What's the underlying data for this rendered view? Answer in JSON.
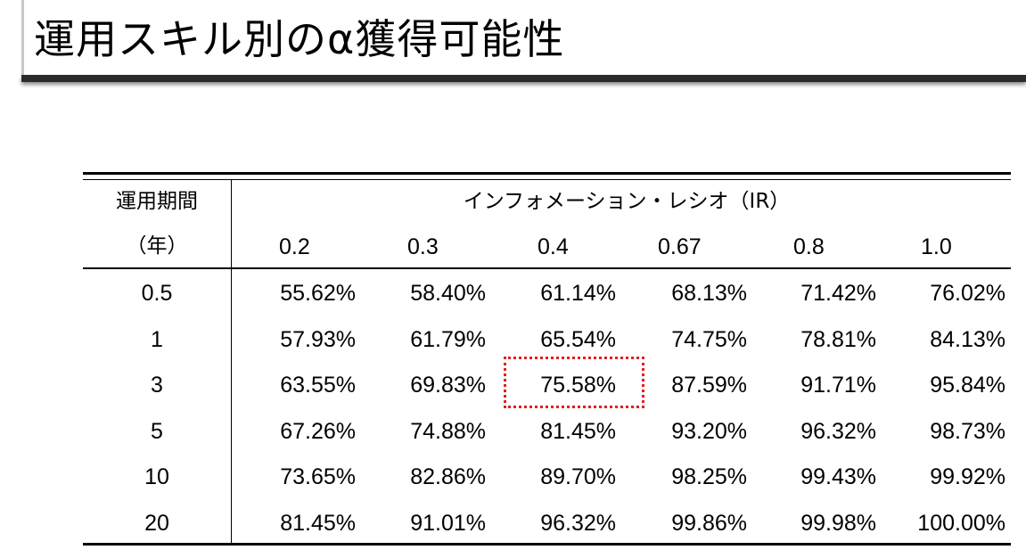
{
  "title": "運用スキル別のα獲得可能性",
  "table": {
    "row_header_line1": "運用期間",
    "row_header_line2": "（年）",
    "group_header": "インフォメーション・レシオ（IR）",
    "columns": [
      "0.2",
      "0.3",
      "0.4",
      "0.67",
      "0.8",
      "1.0"
    ],
    "rows": [
      {
        "period": "0.5",
        "values": [
          "55.62%",
          "58.40%",
          "61.14%",
          "68.13%",
          "71.42%",
          "76.02%"
        ]
      },
      {
        "period": "1",
        "values": [
          "57.93%",
          "61.79%",
          "65.54%",
          "74.75%",
          "78.81%",
          "84.13%"
        ]
      },
      {
        "period": "3",
        "values": [
          "63.55%",
          "69.83%",
          "75.58%",
          "87.59%",
          "91.71%",
          "95.84%"
        ]
      },
      {
        "period": "5",
        "values": [
          "67.26%",
          "74.88%",
          "81.45%",
          "93.20%",
          "96.32%",
          "98.73%"
        ]
      },
      {
        "period": "10",
        "values": [
          "73.65%",
          "82.86%",
          "89.70%",
          "98.25%",
          "99.43%",
          "99.92%"
        ]
      },
      {
        "period": "20",
        "values": [
          "81.45%",
          "91.01%",
          "96.32%",
          "99.86%",
          "99.98%",
          "100.00%"
        ]
      }
    ]
  },
  "highlight": {
    "row": 2,
    "col": 2,
    "color": "#e02020"
  }
}
